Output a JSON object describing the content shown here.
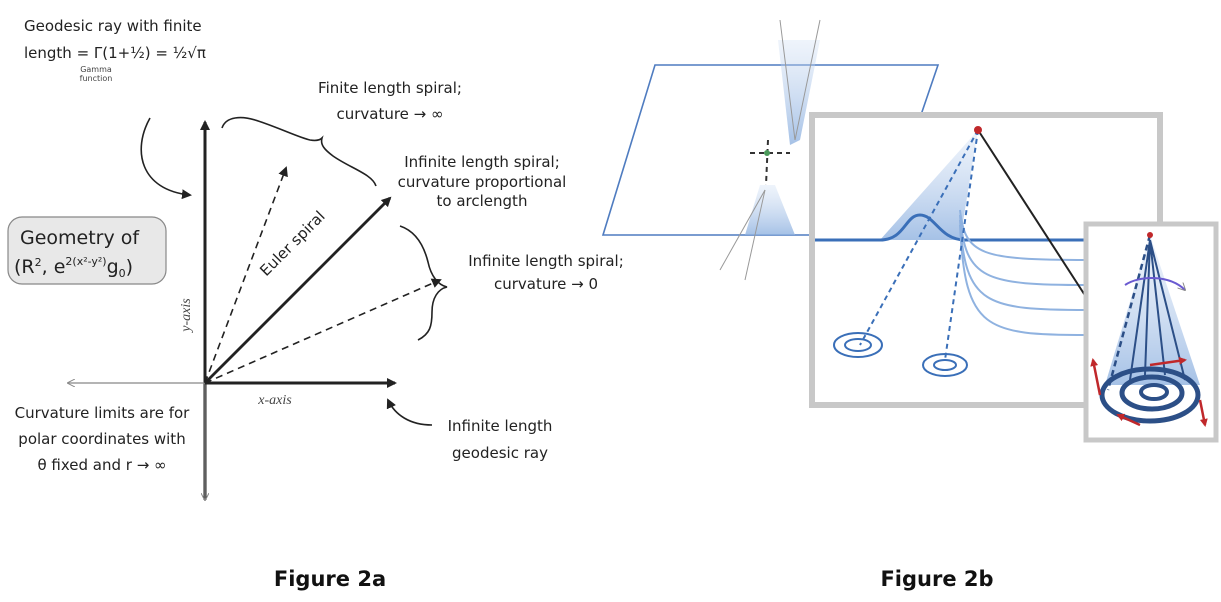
{
  "figure_2a": {
    "geodesic_note": {
      "lines": [
        "Geodesic ray with finite",
        "length = Γ(1+½) = ½√π"
      ],
      "gamma_note": [
        "Gamma",
        "function"
      ]
    },
    "finite_spiral": [
      "Finite length spiral;",
      "curvature → ∞"
    ],
    "infinite_spiral_prop": [
      "Infinite length spiral;",
      "curvature proportional",
      "to arclength"
    ],
    "infinite_spiral_zero": [
      "Infinite length spiral;",
      "curvature → 0"
    ],
    "euler_spiral": "Euler spiral",
    "geometry": {
      "title": "Geometry of",
      "formula": [
        "(R",
        "2",
        ", e",
        "2(x²-y²)",
        "g",
        "0",
        ")"
      ]
    },
    "y_axis": "y-axis",
    "x_axis": "x-axis",
    "curvature_note": [
      "Curvature limits are for",
      "polar coordinates with",
      "θ fixed and r → ∞"
    ],
    "geodesic_ray": [
      "Infinite length",
      "geodesic ray"
    ],
    "caption": "Figure 2a"
  },
  "figure_2b": {
    "caption": "Figure 2b"
  }
}
